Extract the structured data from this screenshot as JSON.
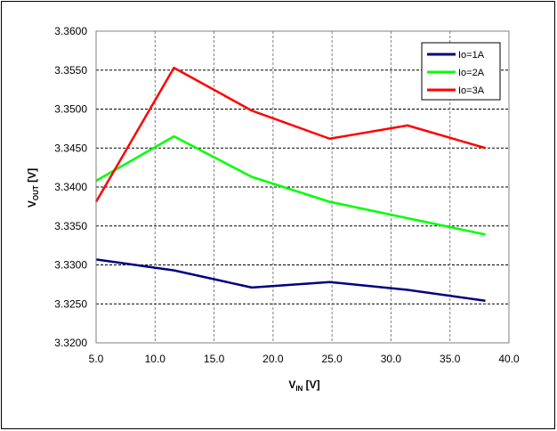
{
  "chart_data": {
    "type": "line",
    "title": "",
    "xlabel": {
      "main": "V",
      "sub": "IN",
      "unit": " [V]"
    },
    "ylabel": {
      "main": "V",
      "sub": "OUT",
      "unit": " [V]"
    },
    "xlim": [
      5.0,
      40.0
    ],
    "ylim": [
      3.32,
      3.36
    ],
    "x_ticks": [
      "5.0",
      "10.0",
      "15.0",
      "20.0",
      "25.0",
      "30.0",
      "35.0",
      "40.0"
    ],
    "y_ticks": [
      "3.3200",
      "3.3250",
      "3.3300",
      "3.3350",
      "3.3400",
      "3.3450",
      "3.3500",
      "3.3550",
      "3.3600"
    ],
    "grid": true,
    "legend_position": "top-right",
    "x": [
      5.0,
      11.6,
      18.2,
      24.8,
      31.4,
      38.0
    ],
    "series": [
      {
        "name": "Io=1A",
        "color": "#000080",
        "values": [
          3.3307,
          3.3293,
          3.3271,
          3.3278,
          3.3268,
          3.3254
        ]
      },
      {
        "name": "Io=2A",
        "color": "#00ff00",
        "values": [
          3.3408,
          3.3465,
          3.3413,
          3.3381,
          3.336,
          3.3339
        ]
      },
      {
        "name": "Io=3A",
        "color": "#ff0000",
        "values": [
          3.3381,
          3.3553,
          3.3498,
          3.3462,
          3.3479,
          3.345
        ]
      }
    ]
  }
}
